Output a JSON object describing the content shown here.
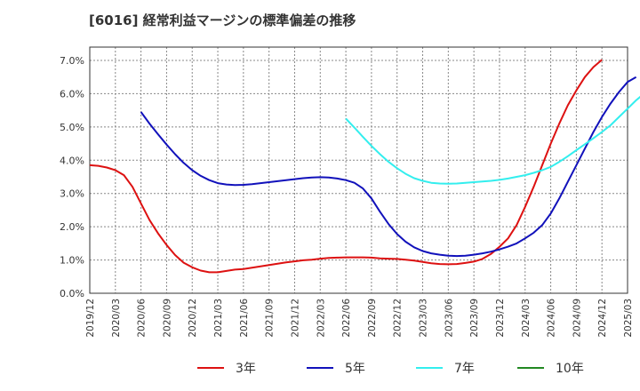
{
  "chart_data": {
    "type": "line",
    "title": "[6016]  経常利益マージンの標準偏差の推移",
    "xlabel": "",
    "ylabel": "",
    "ylim": [
      0,
      7.4
    ],
    "y_ticks": [
      "0.0%",
      "1.0%",
      "2.0%",
      "3.0%",
      "4.0%",
      "5.0%",
      "6.0%",
      "7.0%"
    ],
    "y_tick_values": [
      0,
      1,
      2,
      3,
      4,
      5,
      6,
      7
    ],
    "x_ticks": [
      "2019/12",
      "2020/03",
      "2020/06",
      "2020/09",
      "2020/12",
      "2021/03",
      "2021/06",
      "2021/09",
      "2021/12",
      "2022/03",
      "2022/06",
      "2022/09",
      "2022/12",
      "2023/03",
      "2023/06",
      "2023/09",
      "2023/12",
      "2024/03",
      "2024/06",
      "2024/09",
      "2024/12",
      "2025/03"
    ],
    "grid": true,
    "legend_position": "bottom",
    "series": [
      {
        "name": "3年",
        "color": "#dd1111",
        "start_index": 0,
        "values": [
          3.85,
          3.83,
          3.78,
          3.7,
          3.55,
          3.2,
          2.7,
          2.2,
          1.8,
          1.45,
          1.15,
          0.92,
          0.78,
          0.68,
          0.63,
          0.63,
          0.67,
          0.71,
          0.73,
          0.77,
          0.81,
          0.85,
          0.89,
          0.93,
          0.96,
          0.99,
          1.01,
          1.04,
          1.06,
          1.07,
          1.08,
          1.08,
          1.08,
          1.07,
          1.05,
          1.04,
          1.03,
          1.01,
          0.98,
          0.94,
          0.9,
          0.88,
          0.87,
          0.88,
          0.91,
          0.95,
          1.03,
          1.18,
          1.4,
          1.65,
          2.05,
          2.6,
          3.2,
          3.85,
          4.5,
          5.1,
          5.65,
          6.1,
          6.5,
          6.8,
          7.02
        ]
      },
      {
        "name": "5年",
        "color": "#1111bb",
        "start_index": 6,
        "values": [
          5.45,
          5.1,
          4.78,
          4.47,
          4.18,
          3.92,
          3.7,
          3.53,
          3.4,
          3.31,
          3.27,
          3.25,
          3.26,
          3.28,
          3.31,
          3.34,
          3.37,
          3.4,
          3.43,
          3.46,
          3.48,
          3.49,
          3.48,
          3.45,
          3.4,
          3.32,
          3.15,
          2.85,
          2.45,
          2.08,
          1.78,
          1.55,
          1.38,
          1.27,
          1.2,
          1.16,
          1.13,
          1.12,
          1.13,
          1.16,
          1.2,
          1.25,
          1.32,
          1.4,
          1.5,
          1.65,
          1.82,
          2.05,
          2.4,
          2.85,
          3.35,
          3.85,
          4.35,
          4.85,
          5.3,
          5.7,
          6.05,
          6.35,
          6.5
        ]
      },
      {
        "name": "7年",
        "color": "#33eeee",
        "start_index": 30,
        "values": [
          5.25,
          4.98,
          4.7,
          4.43,
          4.18,
          3.95,
          3.76,
          3.59,
          3.46,
          3.38,
          3.32,
          3.3,
          3.29,
          3.3,
          3.32,
          3.34,
          3.36,
          3.38,
          3.41,
          3.45,
          3.5,
          3.55,
          3.62,
          3.7,
          3.8,
          3.95,
          4.12,
          4.3,
          4.48,
          4.66,
          4.85,
          5.05,
          5.3,
          5.55,
          5.8,
          6.02
        ]
      },
      {
        "name": "10年",
        "color": "#228822",
        "start_index": 0,
        "values": []
      }
    ]
  }
}
